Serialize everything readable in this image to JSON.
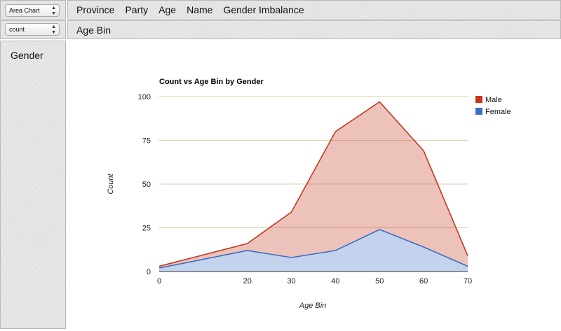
{
  "renderer_select": {
    "value": "Area Chart"
  },
  "aggregator_select": {
    "value": "count"
  },
  "col_attrs": [
    {
      "label": "Province"
    },
    {
      "label": "Party"
    },
    {
      "label": "Age"
    },
    {
      "label": "Name"
    },
    {
      "label": "Gender Imbalance"
    }
  ],
  "row_attrs": [
    {
      "label": "Age Bin"
    }
  ],
  "left_attrs": [
    {
      "label": "Gender"
    }
  ],
  "colors": {
    "male": "#c4361f",
    "female": "#3a6ec4"
  },
  "chart_data": {
    "type": "area",
    "title": "Count vs Age Bin by Gender",
    "xlabel": "Age Bin",
    "ylabel": "Count",
    "x": [
      0,
      20,
      30,
      40,
      50,
      60,
      70
    ],
    "ylim": [
      0,
      100
    ],
    "yticks": [
      0,
      25,
      50,
      75,
      100
    ],
    "stacked": true,
    "grid": true,
    "legend_position": "top-right",
    "series": [
      {
        "name": "Male",
        "values": [
          1,
          4,
          26,
          68,
          73,
          55,
          6
        ]
      },
      {
        "name": "Female",
        "values": [
          2,
          12,
          8,
          12,
          24,
          14,
          3
        ]
      }
    ]
  }
}
